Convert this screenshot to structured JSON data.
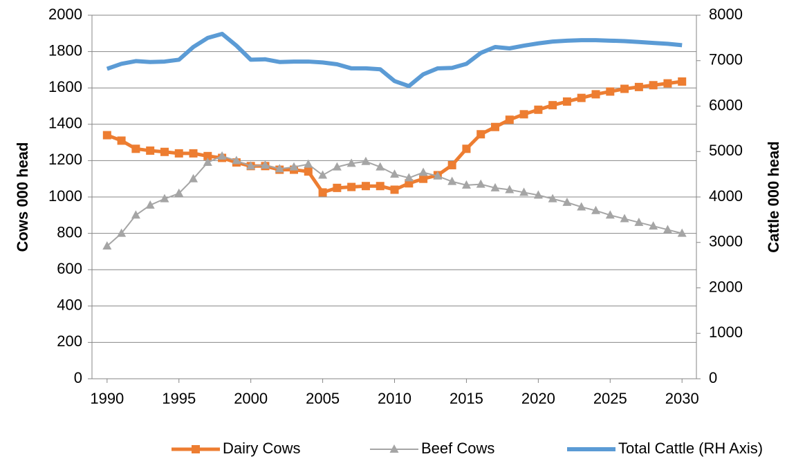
{
  "chart_data": {
    "type": "line",
    "x": [
      1990,
      1991,
      1992,
      1993,
      1994,
      1995,
      1996,
      1997,
      1998,
      1999,
      2000,
      2001,
      2002,
      2003,
      2004,
      2005,
      2006,
      2007,
      2008,
      2009,
      2010,
      2011,
      2012,
      2013,
      2014,
      2015,
      2016,
      2017,
      2018,
      2019,
      2020,
      2021,
      2022,
      2023,
      2024,
      2025,
      2026,
      2027,
      2028,
      2029,
      2030
    ],
    "xlim": [
      1988.95,
      2031
    ],
    "xticks": [
      1990,
      1995,
      2000,
      2005,
      2010,
      2015,
      2020,
      2025,
      2030
    ],
    "ylim": [
      0,
      2000
    ],
    "yticks": [
      0,
      200,
      400,
      600,
      800,
      1000,
      1200,
      1400,
      1600,
      1800,
      2000
    ],
    "y2lim": [
      0,
      8000
    ],
    "y2ticks": [
      0,
      1000,
      2000,
      3000,
      4000,
      5000,
      6000,
      7000,
      8000
    ],
    "ylabel": "Cows 000 head",
    "y2label": "Cattle 000 head",
    "grid": true,
    "legend": "bottom",
    "series": [
      {
        "name": "Dairy Cows",
        "color": "#ED7D31",
        "marker": "square",
        "values": [
          1340,
          1310,
          1265,
          1255,
          1248,
          1240,
          1240,
          1225,
          1215,
          1190,
          1170,
          1170,
          1150,
          1150,
          1140,
          1025,
          1050,
          1055,
          1060,
          1060,
          1040,
          1075,
          1100,
          1120,
          1175,
          1265,
          1345,
          1385,
          1425,
          1455,
          1480,
          1505,
          1525,
          1545,
          1565,
          1580,
          1595,
          1605,
          1615,
          1625,
          1635
        ]
      },
      {
        "name": "Beef Cows",
        "color": "#A5A5A5",
        "marker": "triangle",
        "values": [
          730,
          800,
          900,
          955,
          990,
          1020,
          1100,
          1190,
          1225,
          1200,
          1170,
          1175,
          1155,
          1165,
          1180,
          1120,
          1165,
          1185,
          1195,
          1165,
          1125,
          1105,
          1135,
          1115,
          1085,
          1065,
          1070,
          1050,
          1040,
          1025,
          1010,
          990,
          970,
          945,
          925,
          900,
          880,
          860,
          840,
          820,
          800
        ]
      },
      {
        "name": "Total Cattle (RH Axis)",
        "color": "#5B9BD5",
        "axis": "y2",
        "values": [
          6820,
          6930,
          6990,
          6970,
          6980,
          7020,
          7300,
          7500,
          7590,
          7330,
          7020,
          7030,
          6970,
          6980,
          6980,
          6960,
          6920,
          6830,
          6830,
          6810,
          6550,
          6440,
          6700,
          6830,
          6840,
          6930,
          7170,
          7300,
          7270,
          7330,
          7380,
          7420,
          7440,
          7450,
          7450,
          7440,
          7430,
          7410,
          7390,
          7370,
          7340
        ]
      }
    ]
  }
}
